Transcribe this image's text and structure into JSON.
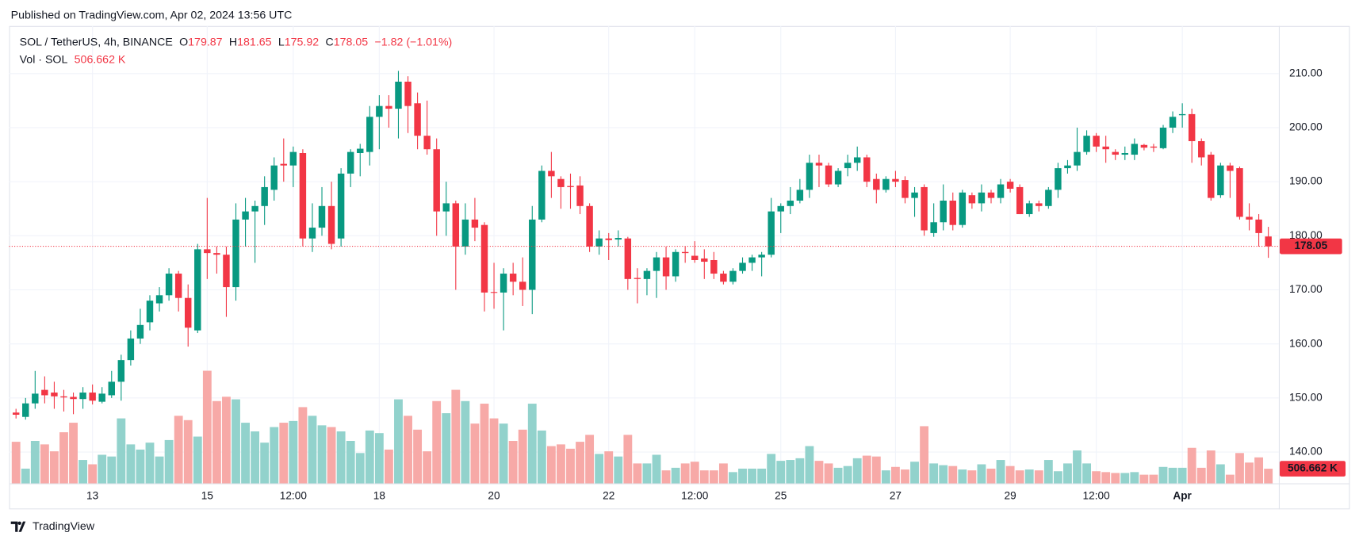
{
  "published": "Published on TradingView.com, Apr 02, 2024 13:56 UTC",
  "footer": "TradingView",
  "chart_data": {
    "type": "candlestick",
    "title": "SOL / TetherUS, 4h, BINANCE",
    "ohlc_labels": [
      "O",
      "H",
      "L",
      "C"
    ],
    "change": "−1.82 (−1.01%)",
    "up_color": "#089981",
    "down_color": "#f23645",
    "grid": true,
    "xlim": [
      -0.72,
      132.1
    ],
    "xticks": [
      {
        "value": 8,
        "label": "13"
      },
      {
        "value": 20,
        "label": "15"
      },
      {
        "value": 29,
        "label": "12:00"
      },
      {
        "value": 38,
        "label": "18"
      },
      {
        "value": 50,
        "label": "20"
      },
      {
        "value": 62,
        "label": "22"
      },
      {
        "value": 71,
        "label": "12:00"
      },
      {
        "value": 80,
        "label": "25"
      },
      {
        "value": 92,
        "label": "27"
      },
      {
        "value": 104,
        "label": "29"
      },
      {
        "value": 113,
        "label": "12:00"
      },
      {
        "value": 122,
        "label": "Apr"
      }
    ],
    "ylim": [
      129.4,
      218.8
    ],
    "yticks": [
      {
        "value": 140,
        "label": "140.00"
      },
      {
        "value": 150,
        "label": "150.00"
      },
      {
        "value": 160,
        "label": "160.00"
      },
      {
        "value": 170,
        "label": "170.00"
      },
      {
        "value": 180,
        "label": "180.00"
      },
      {
        "value": 190,
        "label": "190.00"
      },
      {
        "value": 200,
        "label": "200.00"
      },
      {
        "value": 210,
        "label": "210.00"
      }
    ],
    "candles": [
      {
        "o": 147.3,
        "h": 148,
        "l": 146.2,
        "c": 146.9
      },
      {
        "o": 146.5,
        "h": 150,
        "l": 146,
        "c": 149
      },
      {
        "o": 149,
        "h": 155,
        "l": 148,
        "c": 150.8
      },
      {
        "o": 151.5,
        "h": 154,
        "l": 149,
        "c": 150.5
      },
      {
        "o": 151,
        "h": 153,
        "l": 148,
        "c": 150.3
      },
      {
        "o": 150.3,
        "h": 151.5,
        "l": 147.5,
        "c": 150.1
      },
      {
        "o": 150.2,
        "h": 151,
        "l": 147,
        "c": 149.8
      },
      {
        "o": 149.8,
        "h": 152,
        "l": 148,
        "c": 151
      },
      {
        "o": 151,
        "h": 152.5,
        "l": 148.8,
        "c": 149.5
      },
      {
        "o": 149.3,
        "h": 152,
        "l": 149,
        "c": 150.8
      },
      {
        "o": 150.5,
        "h": 155,
        "l": 150,
        "c": 153
      },
      {
        "o": 153,
        "h": 158,
        "l": 149.5,
        "c": 157
      },
      {
        "o": 157,
        "h": 162.5,
        "l": 156,
        "c": 161
      },
      {
        "o": 161,
        "h": 166.5,
        "l": 160,
        "c": 163.5
      },
      {
        "o": 164,
        "h": 169,
        "l": 162.5,
        "c": 168
      },
      {
        "o": 167.5,
        "h": 170.5,
        "l": 166,
        "c": 169
      },
      {
        "o": 169,
        "h": 174,
        "l": 168,
        "c": 173
      },
      {
        "o": 173,
        "h": 173.5,
        "l": 166,
        "c": 168.5
      },
      {
        "o": 168.5,
        "h": 171,
        "l": 159.5,
        "c": 163
      },
      {
        "o": 162.5,
        "h": 178.5,
        "l": 162,
        "c": 177.5
      },
      {
        "o": 177.5,
        "h": 187,
        "l": 172,
        "c": 176.8
      },
      {
        "o": 176.8,
        "h": 178,
        "l": 173,
        "c": 176.5
      },
      {
        "o": 176.5,
        "h": 178,
        "l": 165,
        "c": 170.5
      },
      {
        "o": 170.5,
        "h": 186,
        "l": 168,
        "c": 183
      },
      {
        "o": 183,
        "h": 187,
        "l": 178,
        "c": 184.5
      },
      {
        "o": 184.5,
        "h": 186.5,
        "l": 175,
        "c": 185.5
      },
      {
        "o": 185.5,
        "h": 191,
        "l": 182,
        "c": 189
      },
      {
        "o": 188.5,
        "h": 194.5,
        "l": 186.5,
        "c": 193
      },
      {
        "o": 193.3,
        "h": 198,
        "l": 190,
        "c": 193
      },
      {
        "o": 193,
        "h": 196.5,
        "l": 189,
        "c": 195.5
      },
      {
        "o": 195.3,
        "h": 196,
        "l": 178,
        "c": 179.5
      },
      {
        "o": 179.5,
        "h": 186,
        "l": 177,
        "c": 181.5
      },
      {
        "o": 181.5,
        "h": 189,
        "l": 180,
        "c": 185.5
      },
      {
        "o": 185.5,
        "h": 190,
        "l": 177.5,
        "c": 178.5
      },
      {
        "o": 179.5,
        "h": 192.5,
        "l": 178,
        "c": 191.5
      },
      {
        "o": 191.5,
        "h": 196,
        "l": 189,
        "c": 195.5
      },
      {
        "o": 195.3,
        "h": 197,
        "l": 191,
        "c": 196.1
      },
      {
        "o": 195.5,
        "h": 204,
        "l": 193,
        "c": 202
      },
      {
        "o": 202,
        "h": 206,
        "l": 196,
        "c": 204
      },
      {
        "o": 204,
        "h": 206,
        "l": 200,
        "c": 203.5
      },
      {
        "o": 203.5,
        "h": 210.5,
        "l": 198,
        "c": 208.5
      },
      {
        "o": 208.5,
        "h": 209.5,
        "l": 199,
        "c": 204
      },
      {
        "o": 204.5,
        "h": 206.5,
        "l": 196,
        "c": 198.5
      },
      {
        "o": 198.5,
        "h": 205,
        "l": 195,
        "c": 196
      },
      {
        "o": 196,
        "h": 198,
        "l": 180,
        "c": 184.5
      },
      {
        "o": 184.5,
        "h": 190,
        "l": 180,
        "c": 186
      },
      {
        "o": 186,
        "h": 186.5,
        "l": 170,
        "c": 178
      },
      {
        "o": 178,
        "h": 186,
        "l": 176.5,
        "c": 183
      },
      {
        "o": 183,
        "h": 187,
        "l": 179,
        "c": 181.5
      },
      {
        "o": 182,
        "h": 182.5,
        "l": 166,
        "c": 169.5
      },
      {
        "o": 169.6,
        "h": 175,
        "l": 166.5,
        "c": 169.5
      },
      {
        "o": 169.5,
        "h": 174,
        "l": 162.5,
        "c": 173
      },
      {
        "o": 173,
        "h": 175,
        "l": 169,
        "c": 171.5
      },
      {
        "o": 171.5,
        "h": 176,
        "l": 167,
        "c": 170
      },
      {
        "o": 170,
        "h": 185.5,
        "l": 165.5,
        "c": 183
      },
      {
        "o": 183,
        "h": 193,
        "l": 182.5,
        "c": 192
      },
      {
        "o": 192,
        "h": 195.5,
        "l": 187,
        "c": 191
      },
      {
        "o": 190.5,
        "h": 191,
        "l": 185,
        "c": 189
      },
      {
        "o": 189.2,
        "h": 191.5,
        "l": 185,
        "c": 189
      },
      {
        "o": 189.3,
        "h": 191,
        "l": 184,
        "c": 185.5
      },
      {
        "o": 185.5,
        "h": 186,
        "l": 177,
        "c": 178
      },
      {
        "o": 178,
        "h": 181,
        "l": 176.5,
        "c": 179.5
      },
      {
        "o": 179.5,
        "h": 180.5,
        "l": 175.5,
        "c": 179.2
      },
      {
        "o": 179.3,
        "h": 181,
        "l": 178,
        "c": 179.6
      },
      {
        "o": 179.5,
        "h": 179.8,
        "l": 170,
        "c": 172
      },
      {
        "o": 172.2,
        "h": 174,
        "l": 167.5,
        "c": 172
      },
      {
        "o": 172,
        "h": 174,
        "l": 169,
        "c": 173.5
      },
      {
        "o": 173.5,
        "h": 177,
        "l": 168.5,
        "c": 176
      },
      {
        "o": 176,
        "h": 178,
        "l": 170,
        "c": 172.5
      },
      {
        "o": 172.5,
        "h": 177.5,
        "l": 171.5,
        "c": 177
      },
      {
        "o": 177,
        "h": 178,
        "l": 175,
        "c": 176.8
      },
      {
        "o": 176.3,
        "h": 179,
        "l": 175,
        "c": 175.5
      },
      {
        "o": 175.8,
        "h": 177.5,
        "l": 172,
        "c": 175.2
      },
      {
        "o": 175.5,
        "h": 177,
        "l": 172,
        "c": 173
      },
      {
        "o": 173,
        "h": 173.5,
        "l": 171,
        "c": 171.5
      },
      {
        "o": 171.5,
        "h": 174,
        "l": 171,
        "c": 173.5
      },
      {
        "o": 173.5,
        "h": 176,
        "l": 173,
        "c": 175
      },
      {
        "o": 175,
        "h": 176.5,
        "l": 173.5,
        "c": 176
      },
      {
        "o": 176,
        "h": 177,
        "l": 172.5,
        "c": 176.5
      },
      {
        "o": 176.5,
        "h": 187,
        "l": 176,
        "c": 184.5
      },
      {
        "o": 184.5,
        "h": 186,
        "l": 180.5,
        "c": 185.5
      },
      {
        "o": 185.5,
        "h": 189,
        "l": 184,
        "c": 186.5
      },
      {
        "o": 186.5,
        "h": 190.5,
        "l": 186,
        "c": 188.5
      },
      {
        "o": 188.5,
        "h": 195,
        "l": 187,
        "c": 193.5
      },
      {
        "o": 193.5,
        "h": 195,
        "l": 189,
        "c": 193
      },
      {
        "o": 193,
        "h": 193.5,
        "l": 189,
        "c": 189.5
      },
      {
        "o": 189.5,
        "h": 192.5,
        "l": 189,
        "c": 192
      },
      {
        "o": 192.5,
        "h": 195,
        "l": 191,
        "c": 193.5
      },
      {
        "o": 193.5,
        "h": 196.5,
        "l": 192,
        "c": 194.5
      },
      {
        "o": 194.5,
        "h": 195,
        "l": 189,
        "c": 190
      },
      {
        "o": 190.5,
        "h": 191.5,
        "l": 186,
        "c": 188.5
      },
      {
        "o": 188.5,
        "h": 191,
        "l": 188,
        "c": 190.5
      },
      {
        "o": 190.5,
        "h": 192,
        "l": 189,
        "c": 190
      },
      {
        "o": 190.3,
        "h": 191,
        "l": 186,
        "c": 187
      },
      {
        "o": 187,
        "h": 189,
        "l": 183.5,
        "c": 188
      },
      {
        "o": 189,
        "h": 189.5,
        "l": 180,
        "c": 181
      },
      {
        "o": 180.5,
        "h": 186,
        "l": 179.8,
        "c": 182.5
      },
      {
        "o": 182.5,
        "h": 189.5,
        "l": 181,
        "c": 186.5
      },
      {
        "o": 186.5,
        "h": 188,
        "l": 181,
        "c": 182
      },
      {
        "o": 182,
        "h": 188.5,
        "l": 181.5,
        "c": 188
      },
      {
        "o": 187.5,
        "h": 188,
        "l": 185,
        "c": 186
      },
      {
        "o": 186,
        "h": 189.5,
        "l": 184.5,
        "c": 188
      },
      {
        "o": 188,
        "h": 188.5,
        "l": 186,
        "c": 187
      },
      {
        "o": 187,
        "h": 190.5,
        "l": 186,
        "c": 189.5
      },
      {
        "o": 190,
        "h": 190.5,
        "l": 188,
        "c": 188.7
      },
      {
        "o": 189,
        "h": 189.5,
        "l": 184,
        "c": 184
      },
      {
        "o": 184,
        "h": 186.5,
        "l": 183.5,
        "c": 186
      },
      {
        "o": 186,
        "h": 186.5,
        "l": 184.5,
        "c": 185.5
      },
      {
        "o": 185.5,
        "h": 189,
        "l": 185,
        "c": 188.5
      },
      {
        "o": 188.5,
        "h": 193.5,
        "l": 187,
        "c": 192.5
      },
      {
        "o": 192.5,
        "h": 194,
        "l": 191.5,
        "c": 193
      },
      {
        "o": 193,
        "h": 200,
        "l": 192,
        "c": 195.5
      },
      {
        "o": 195.5,
        "h": 199.5,
        "l": 195,
        "c": 198.5
      },
      {
        "o": 198.5,
        "h": 199,
        "l": 195.5,
        "c": 196.5
      },
      {
        "o": 196.5,
        "h": 198.5,
        "l": 193.5,
        "c": 196
      },
      {
        "o": 195.5,
        "h": 196,
        "l": 194,
        "c": 195
      },
      {
        "o": 195,
        "h": 196.5,
        "l": 194,
        "c": 195.3
      },
      {
        "o": 195,
        "h": 198,
        "l": 194,
        "c": 197
      },
      {
        "o": 196.8,
        "h": 197,
        "l": 195.8,
        "c": 196.3
      },
      {
        "o": 196.5,
        "h": 197,
        "l": 195.5,
        "c": 196.3
      },
      {
        "o": 196.2,
        "h": 200.5,
        "l": 196,
        "c": 200
      },
      {
        "o": 200,
        "h": 203,
        "l": 199,
        "c": 202
      },
      {
        "o": 202.3,
        "h": 204.5,
        "l": 200,
        "c": 202.5
      },
      {
        "o": 202.5,
        "h": 203.5,
        "l": 193.5,
        "c": 197.5
      },
      {
        "o": 197.5,
        "h": 198,
        "l": 193,
        "c": 194.5
      },
      {
        "o": 195,
        "h": 195.5,
        "l": 186.5,
        "c": 187
      },
      {
        "o": 187.5,
        "h": 193.5,
        "l": 187,
        "c": 193
      },
      {
        "o": 193,
        "h": 193.5,
        "l": 187,
        "c": 192
      },
      {
        "o": 192.5,
        "h": 192.8,
        "l": 183,
        "c": 183.5
      },
      {
        "o": 183.5,
        "h": 186,
        "l": 181,
        "c": 183
      },
      {
        "o": 183,
        "h": 184,
        "l": 178,
        "c": 180.5
      },
      {
        "o": 179.87,
        "h": 181.65,
        "l": 175.92,
        "c": 178.05
      }
    ],
    "volume": {
      "name": "Vol · SOL",
      "last_label": "506.662 K",
      "up_color": "#92d2cc",
      "down_color": "#f7a9a7",
      "values": [
        1440,
        510,
        1470,
        1350,
        1110,
        1770,
        2100,
        810,
        660,
        990,
        930,
        2250,
        1350,
        1170,
        1410,
        930,
        1500,
        2340,
        2190,
        1620,
        3900,
        2850,
        3000,
        2910,
        2100,
        1800,
        1410,
        1950,
        2100,
        2160,
        2640,
        2340,
        2010,
        1950,
        1800,
        1470,
        1050,
        1830,
        1740,
        1170,
        2910,
        2340,
        1860,
        1110,
        2850,
        2430,
        3240,
        2850,
        2070,
        2760,
        2250,
        2070,
        1470,
        1860,
        2760,
        1830,
        1290,
        1350,
        1200,
        1440,
        1680,
        1020,
        1110,
        930,
        1680,
        690,
        690,
        990,
        450,
        540,
        690,
        750,
        450,
        450,
        690,
        390,
        510,
        510,
        510,
        1020,
        780,
        810,
        870,
        1290,
        780,
        690,
        540,
        600,
        870,
        960,
        930,
        450,
        570,
        480,
        750,
        1980,
        690,
        630,
        600,
        480,
        450,
        660,
        510,
        810,
        600,
        450,
        480,
        450,
        810,
        420,
        690,
        1140,
        690,
        420,
        390,
        360,
        360,
        390,
        300,
        300,
        570,
        540,
        540,
        1230,
        540,
        1140,
        660,
        300,
        1050,
        720,
        900,
        506.662
      ]
    }
  }
}
